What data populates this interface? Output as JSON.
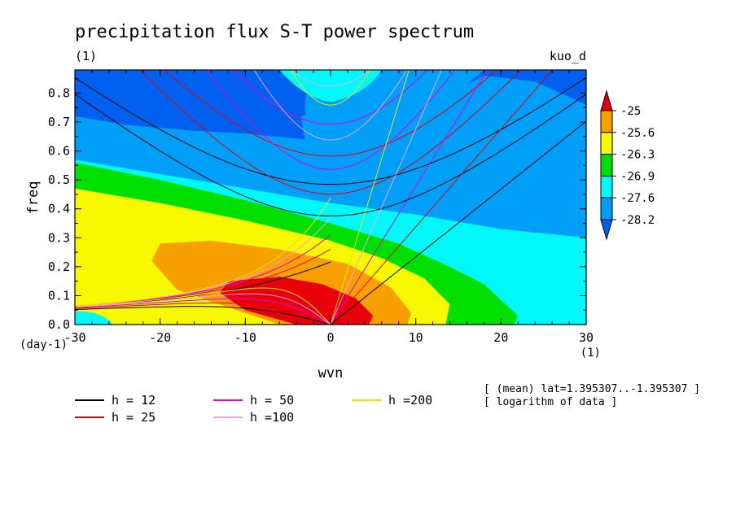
{
  "chart_data": {
    "type": "heatmap",
    "title": "precipitation flux S-T power spectrum",
    "title_units": "(1)",
    "model_label": "kuo_d",
    "xlabel": "wvn",
    "ylabel": "freq",
    "x_units": "(1)",
    "y_units": "(day-1)",
    "xlim": [
      -30,
      30
    ],
    "ylim": [
      0.0,
      0.88
    ],
    "x_ticks": [
      -30,
      -20,
      -10,
      0,
      10,
      20,
      30
    ],
    "y_ticks": [
      0.0,
      0.1,
      0.2,
      0.3,
      0.4,
      0.5,
      0.6,
      0.7,
      0.8
    ],
    "colorbar": {
      "levels": [
        -25,
        -25.6,
        -26.3,
        -26.9,
        -27.6,
        -28.2
      ],
      "band_colors": [
        "#e8000b",
        "#f8a000",
        "#f8f800",
        "#00e000",
        "#00f8f8",
        "#00a0f8",
        "#0060f0"
      ]
    },
    "dispersion_curves": [
      {
        "label": "h = 12",
        "h": 12,
        "color": "#000000"
      },
      {
        "label": "h = 25",
        "h": 25,
        "color": "#e8000b"
      },
      {
        "label": "h = 50",
        "h": 50,
        "color": "#e000e0"
      },
      {
        "label": "h =100",
        "h": 100,
        "color": "#f0a0f0"
      },
      {
        "label": "h =200",
        "h": 200,
        "color": "#f0e000"
      }
    ],
    "notes": [
      "[ (mean) lat=1.395307..-1.395307 ]",
      "[ logarithm of data ]"
    ]
  }
}
